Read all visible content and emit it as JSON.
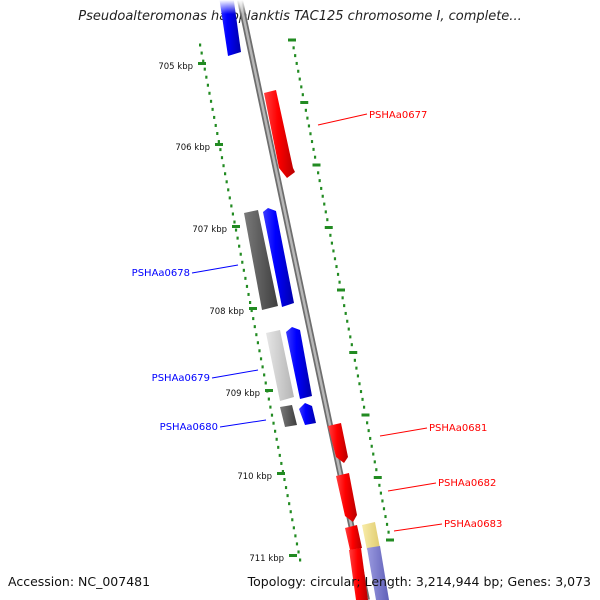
{
  "title": "Pseudoalteromonas haloplanktis TAC125 chromosome I, complete...",
  "footer": {
    "accession": "Accession: NC_007481",
    "summary": "Topology: circular; Length: 3,214,944 bp; Genes: 3,073"
  },
  "colors": {
    "forward_gene": "#ff0000",
    "reverse_gene": "#0000ff",
    "rna_forward": "#f0e08c",
    "rna_reverse": "#7f7fcc",
    "pseudo_dark": "#5a5a5a",
    "pseudo_light": "#cfcfcf",
    "tick": "#228b22",
    "backbone": "#8a8a8a"
  },
  "ruler": {
    "unit": "kbp",
    "ticks": [
      {
        "position_kbp": 705,
        "label": "705 kbp"
      },
      {
        "position_kbp": 706,
        "label": "706 kbp"
      },
      {
        "position_kbp": 707,
        "label": "707 kbp"
      },
      {
        "position_kbp": 708,
        "label": "708 kbp"
      },
      {
        "position_kbp": 709,
        "label": "709 kbp"
      },
      {
        "position_kbp": 710,
        "label": "710 kbp"
      },
      {
        "position_kbp": 711,
        "label": "711 kbp"
      }
    ]
  },
  "genes": [
    {
      "name": "PSHAa0677",
      "label_side": "right"
    },
    {
      "name": "PSHAa0678",
      "label_side": "left"
    },
    {
      "name": "PSHAa0679",
      "label_side": "left"
    },
    {
      "name": "PSHAa0680",
      "label_side": "left"
    },
    {
      "name": "PSHAa0681",
      "label_side": "right"
    },
    {
      "name": "PSHAa0682",
      "label_side": "right"
    },
    {
      "name": "PSHAa0683",
      "label_side": "right"
    }
  ]
}
